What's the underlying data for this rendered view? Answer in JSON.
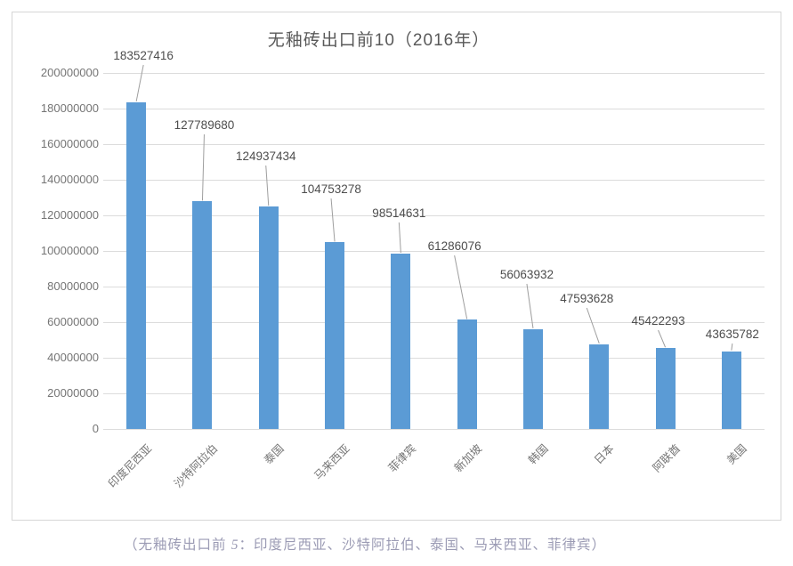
{
  "chart_data": {
    "type": "bar",
    "title": "无釉砖出口前10（2016年）",
    "categories": [
      "印度尼西亚",
      "沙特阿拉伯",
      "泰国",
      "马来西亚",
      "菲律宾",
      "新加坡",
      "韩国",
      "日本",
      "阿联酋",
      "美国"
    ],
    "values": [
      183527416,
      127789680,
      124937434,
      104753278,
      98514631,
      61286076,
      56063932,
      47593628,
      45422293,
      43635782
    ],
    "data_labels": [
      "183527416",
      "127789680",
      "124937434",
      "104753278",
      "98514631",
      "61286076",
      "56063932",
      "47593628",
      "45422293",
      "43635782"
    ],
    "xlabel": "",
    "ylabel": "",
    "ylim": [
      0,
      200000000
    ],
    "ytick_step": 20000000,
    "grid": true,
    "legend": null,
    "colors": {
      "bar": "#5b9bd5",
      "grid": "#dcdcdc",
      "axis_text": "#757575",
      "data_label_text": "#4d4d4d",
      "leader_line": "#9e9e9e",
      "title_text": "#595959",
      "chart_border": "#d6d6d6"
    },
    "layout": {
      "label_bottoms": [
        57,
        135,
        170,
        207,
        234,
        271,
        303,
        330,
        355,
        370
      ],
      "label_dx": [
        8,
        2,
        -3,
        -4,
        -2,
        -14,
        -7,
        -14,
        -8,
        1
      ]
    }
  },
  "caption": {
    "prefix": "（无釉砖出口前 ",
    "italic": "5",
    "suffix": "：印度尼西亚、沙特阿拉伯、泰国、马来西亚、菲律宾）"
  }
}
